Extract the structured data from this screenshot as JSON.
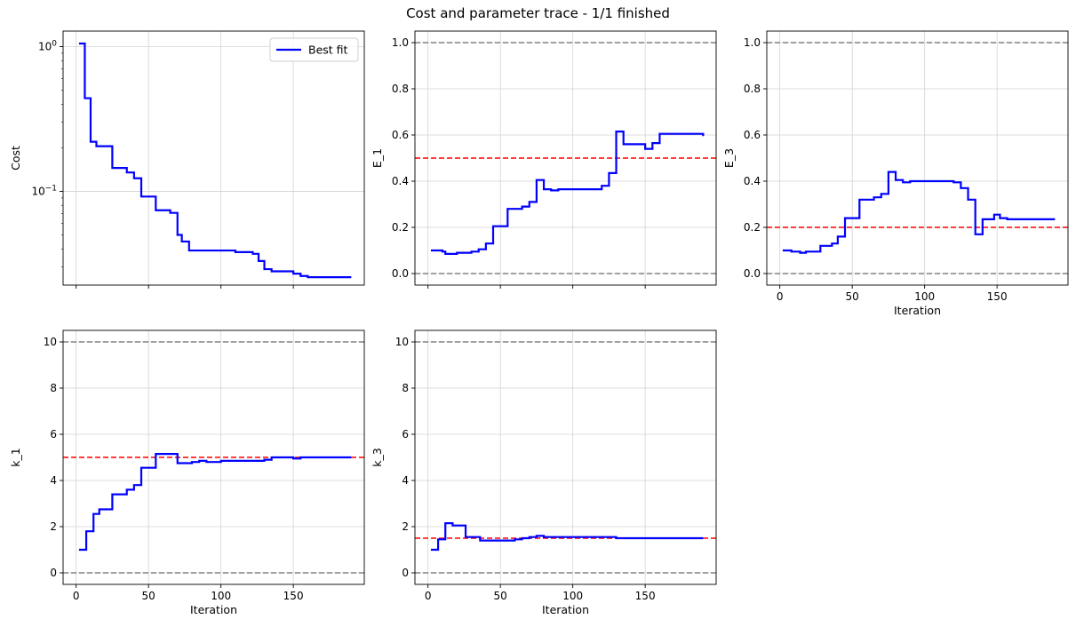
{
  "figure": {
    "title": "Cost and parameter trace - 1/1 finished"
  },
  "colors": {
    "best_fit": "#0000ff",
    "true_value": "#ff0000",
    "bounds": "#808080",
    "grid": "#d3d3d3"
  },
  "chart_data": [
    {
      "id": "cost",
      "type": "line",
      "step": "post",
      "title": "",
      "xlabel": "",
      "ylabel": "Cost",
      "yscale": "log",
      "xlim": [
        -9,
        199
      ],
      "ylim": [
        0.0225,
        1.28
      ],
      "xticks": [
        0,
        50,
        100,
        150
      ],
      "xticklabels": [
        "",
        "",
        "",
        ""
      ],
      "yticks": [
        1.0,
        0.1
      ],
      "yticklabels": [
        "10^0",
        "10^-1"
      ],
      "grid": true,
      "legend": {
        "position": "top-right",
        "entries": [
          "Best fit"
        ]
      },
      "hlines": [],
      "series": [
        {
          "name": "Best fit",
          "x": [
            2,
            6,
            10,
            14,
            25,
            35,
            40,
            45,
            55,
            65,
            70,
            73,
            78,
            90,
            110,
            122,
            126,
            130,
            135,
            140,
            150,
            155,
            160,
            190
          ],
          "y": [
            1.05,
            0.44,
            0.22,
            0.205,
            0.145,
            0.135,
            0.123,
            0.092,
            0.074,
            0.071,
            0.05,
            0.045,
            0.039,
            0.039,
            0.038,
            0.037,
            0.033,
            0.029,
            0.028,
            0.028,
            0.027,
            0.026,
            0.0255,
            0.0255
          ]
        }
      ]
    },
    {
      "id": "E_1",
      "type": "line",
      "step": "post",
      "title": "",
      "xlabel": "",
      "ylabel": "E_1",
      "yscale": "linear",
      "xlim": [
        -9,
        199
      ],
      "ylim": [
        -0.05,
        1.05
      ],
      "xticks": [
        0,
        50,
        100,
        150
      ],
      "xticklabels": [
        "",
        "",
        "",
        ""
      ],
      "yticks": [
        0.0,
        0.2,
        0.4,
        0.6,
        0.8,
        1.0
      ],
      "yticklabels": [
        "0.0",
        "0.2",
        "0.4",
        "0.6",
        "0.8",
        "1.0"
      ],
      "grid": true,
      "hlines": [
        {
          "role": "bound",
          "y": 1.0
        },
        {
          "role": "true",
          "y": 0.5
        },
        {
          "role": "bound",
          "y": 0.0
        }
      ],
      "series": [
        {
          "name": "Best fit",
          "x": [
            2,
            10,
            12,
            20,
            30,
            35,
            40,
            45,
            55,
            65,
            70,
            75,
            80,
            85,
            90,
            120,
            125,
            130,
            135,
            140,
            150,
            155,
            160,
            190
          ],
          "y": [
            0.1,
            0.095,
            0.085,
            0.09,
            0.095,
            0.105,
            0.13,
            0.205,
            0.28,
            0.29,
            0.31,
            0.405,
            0.365,
            0.36,
            0.365,
            0.38,
            0.435,
            0.615,
            0.56,
            0.56,
            0.54,
            0.565,
            0.605,
            0.595
          ]
        }
      ]
    },
    {
      "id": "E_3",
      "type": "line",
      "step": "post",
      "title": "",
      "xlabel": "Iteration",
      "ylabel": "E_3",
      "yscale": "linear",
      "xlim": [
        -9,
        199
      ],
      "ylim": [
        -0.05,
        1.05
      ],
      "xticks": [
        0,
        50,
        100,
        150
      ],
      "xticklabels": [
        "0",
        "50",
        "100",
        "150"
      ],
      "yticks": [
        0.0,
        0.2,
        0.4,
        0.6,
        0.8,
        1.0
      ],
      "yticklabels": [
        "0.0",
        "0.2",
        "0.4",
        "0.6",
        "0.8",
        "1.0"
      ],
      "grid": true,
      "hlines": [
        {
          "role": "bound",
          "y": 1.0
        },
        {
          "role": "true",
          "y": 0.2
        },
        {
          "role": "bound",
          "y": 0.0
        }
      ],
      "series": [
        {
          "name": "Best fit",
          "x": [
            2,
            8,
            14,
            18,
            28,
            36,
            40,
            45,
            55,
            65,
            70,
            75,
            80,
            85,
            90,
            120,
            125,
            130,
            135,
            140,
            148,
            152,
            157,
            165,
            190
          ],
          "y": [
            0.1,
            0.095,
            0.09,
            0.095,
            0.12,
            0.13,
            0.16,
            0.24,
            0.32,
            0.33,
            0.345,
            0.44,
            0.405,
            0.395,
            0.4,
            0.395,
            0.37,
            0.32,
            0.17,
            0.235,
            0.255,
            0.24,
            0.235,
            0.235,
            0.235
          ]
        }
      ]
    },
    {
      "id": "k_1",
      "type": "line",
      "step": "post",
      "title": "",
      "xlabel": "Iteration",
      "ylabel": "k_1",
      "yscale": "linear",
      "xlim": [
        -9,
        199
      ],
      "ylim": [
        -0.5,
        10.5
      ],
      "xticks": [
        0,
        50,
        100,
        150
      ],
      "xticklabels": [
        "0",
        "50",
        "100",
        "150"
      ],
      "yticks": [
        0,
        2,
        4,
        6,
        8,
        10
      ],
      "yticklabels": [
        "0",
        "2",
        "4",
        "6",
        "8",
        "10"
      ],
      "grid": true,
      "hlines": [
        {
          "role": "bound",
          "y": 10
        },
        {
          "role": "true",
          "y": 5
        },
        {
          "role": "bound",
          "y": 0
        }
      ],
      "series": [
        {
          "name": "Best fit",
          "x": [
            2,
            7,
            12,
            16,
            25,
            35,
            40,
            45,
            55,
            70,
            80,
            85,
            90,
            100,
            130,
            135,
            150,
            155,
            190
          ],
          "y": [
            1.0,
            1.8,
            2.55,
            2.75,
            3.4,
            3.6,
            3.8,
            4.55,
            5.15,
            4.75,
            4.8,
            4.85,
            4.8,
            4.85,
            4.9,
            5.0,
            4.95,
            5.0,
            5.0
          ]
        }
      ]
    },
    {
      "id": "k_3",
      "type": "line",
      "step": "post",
      "title": "",
      "xlabel": "Iteration",
      "ylabel": "k_3",
      "yscale": "linear",
      "xlim": [
        -9,
        199
      ],
      "ylim": [
        -0.5,
        10.5
      ],
      "xticks": [
        0,
        50,
        100,
        150
      ],
      "xticklabels": [
        "0",
        "50",
        "100",
        "150"
      ],
      "yticks": [
        0,
        2,
        4,
        6,
        8,
        10
      ],
      "yticklabels": [
        "0",
        "2",
        "4",
        "6",
        "8",
        "10"
      ],
      "grid": true,
      "hlines": [
        {
          "role": "bound",
          "y": 10
        },
        {
          "role": "true",
          "y": 1.5
        },
        {
          "role": "bound",
          "y": 0
        }
      ],
      "series": [
        {
          "name": "Best fit",
          "x": [
            2,
            7,
            12,
            17,
            26,
            36,
            60,
            65,
            70,
            75,
            80,
            130,
            190
          ],
          "y": [
            1.0,
            1.45,
            2.15,
            2.05,
            1.55,
            1.4,
            1.45,
            1.5,
            1.55,
            1.6,
            1.55,
            1.5,
            1.5
          ]
        }
      ]
    }
  ]
}
